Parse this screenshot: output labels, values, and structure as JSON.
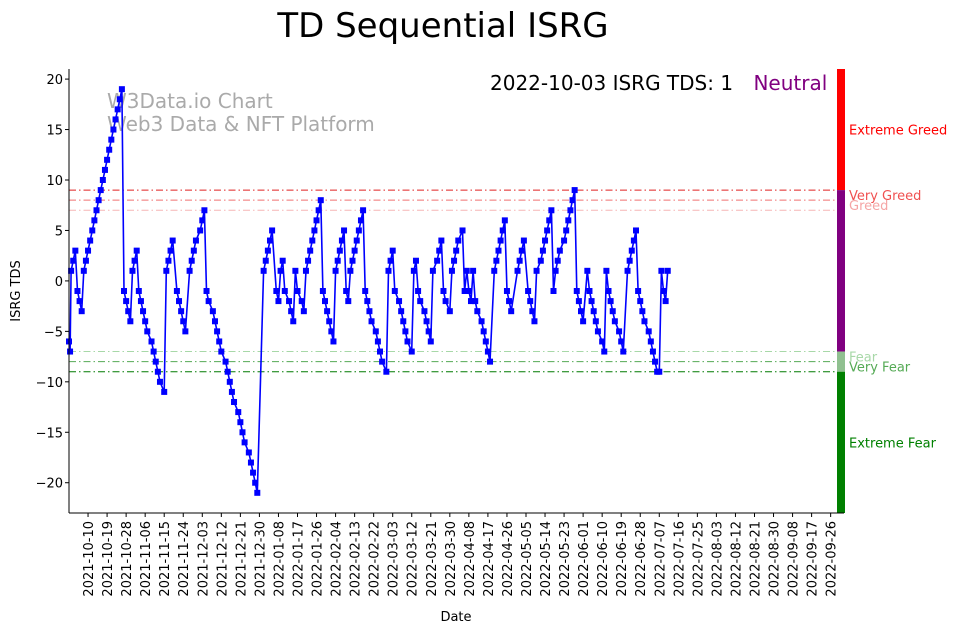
{
  "chart_data": {
    "type": "line",
    "title": "TD Sequential ISRG",
    "xlabel": "Date",
    "ylabel": "ISRG TDS",
    "ylim": [
      -23,
      21
    ],
    "yticks": [
      20,
      15,
      10,
      5,
      0,
      -5,
      -10,
      -15,
      -20
    ],
    "xlim": [
      0,
      363
    ],
    "xtick_labels": [
      "2021-10-10",
      "2021-10-19",
      "2021-10-28",
      "2021-11-06",
      "2021-11-15",
      "2021-11-24",
      "2021-12-03",
      "2021-12-12",
      "2021-12-21",
      "2021-12-30",
      "2022-01-08",
      "2022-01-17",
      "2022-01-26",
      "2022-02-04",
      "2022-02-13",
      "2022-02-22",
      "2022-03-03",
      "2022-03-12",
      "2022-03-21",
      "2022-03-30",
      "2022-04-08",
      "2022-04-17",
      "2022-04-26",
      "2022-05-05",
      "2022-05-14",
      "2022-05-23",
      "2022-06-01",
      "2022-06-10",
      "2022-06-19",
      "2022-06-28",
      "2022-07-07",
      "2022-07-16",
      "2022-07-25",
      "2022-08-03",
      "2022-08-12",
      "2022-08-21",
      "2022-08-30",
      "2022-09-08",
      "2022-09-17",
      "2022-09-26"
    ],
    "xtick_days": [
      9,
      18,
      27,
      36,
      45,
      54,
      63,
      72,
      81,
      90,
      99,
      108,
      117,
      126,
      135,
      144,
      153,
      162,
      171,
      180,
      189,
      198,
      207,
      216,
      225,
      234,
      243,
      252,
      261,
      270,
      279,
      288,
      297,
      306,
      315,
      324,
      333,
      342,
      351,
      360
    ],
    "series": [
      {
        "name": "ISRG TDS",
        "color": "#0000ff",
        "marker": "square",
        "points": [
          [
            0,
            -6
          ],
          [
            0.5,
            -7
          ],
          [
            1,
            1
          ],
          [
            2,
            2
          ],
          [
            3,
            3
          ],
          [
            4,
            -1
          ],
          [
            5,
            -2
          ],
          [
            6,
            -3
          ],
          [
            7,
            1
          ],
          [
            8,
            2
          ],
          [
            9,
            3
          ],
          [
            10,
            4
          ],
          [
            11,
            5
          ],
          [
            12,
            6
          ],
          [
            13,
            7
          ],
          [
            14,
            8
          ],
          [
            15,
            9
          ],
          [
            16,
            10
          ],
          [
            17,
            11
          ],
          [
            18,
            12
          ],
          [
            19,
            13
          ],
          [
            20,
            14
          ],
          [
            21,
            15
          ],
          [
            22,
            16
          ],
          [
            23,
            17
          ],
          [
            24,
            18
          ],
          [
            25,
            19
          ],
          [
            26,
            -1
          ],
          [
            27,
            -2
          ],
          [
            28,
            -3
          ],
          [
            29,
            -4
          ],
          [
            30,
            1
          ],
          [
            31,
            2
          ],
          [
            32,
            3
          ],
          [
            33,
            -1
          ],
          [
            34,
            -2
          ],
          [
            35,
            -3
          ],
          [
            36,
            -4
          ],
          [
            37,
            -5
          ],
          [
            39,
            -6
          ],
          [
            40,
            -7
          ],
          [
            41,
            -8
          ],
          [
            42,
            -9
          ],
          [
            43,
            -10
          ],
          [
            45,
            -11
          ],
          [
            46,
            1
          ],
          [
            47,
            2
          ],
          [
            48,
            3
          ],
          [
            49,
            4
          ],
          [
            51,
            -1
          ],
          [
            52,
            -2
          ],
          [
            53,
            -3
          ],
          [
            54,
            -4
          ],
          [
            55,
            -5
          ],
          [
            57,
            1
          ],
          [
            58,
            2
          ],
          [
            59,
            3
          ],
          [
            60,
            4
          ],
          [
            62,
            5
          ],
          [
            63,
            6
          ],
          [
            64,
            7
          ],
          [
            65,
            -1
          ],
          [
            66,
            -2
          ],
          [
            68,
            -3
          ],
          [
            69,
            -4
          ],
          [
            70,
            -5
          ],
          [
            71,
            -6
          ],
          [
            72,
            -7
          ],
          [
            74,
            -8
          ],
          [
            75,
            -9
          ],
          [
            76,
            -10
          ],
          [
            77,
            -11
          ],
          [
            78,
            -12
          ],
          [
            80,
            -13
          ],
          [
            81,
            -14
          ],
          [
            82,
            -15
          ],
          [
            83,
            -16
          ],
          [
            85,
            -17
          ],
          [
            86,
            -18
          ],
          [
            87,
            -19
          ],
          [
            88,
            -20
          ],
          [
            89,
            -21
          ],
          [
            92,
            1
          ],
          [
            93,
            2
          ],
          [
            94,
            3
          ],
          [
            95,
            4
          ],
          [
            96,
            5
          ],
          [
            98,
            -1
          ],
          [
            99,
            -2
          ],
          [
            100,
            1
          ],
          [
            101,
            2
          ],
          [
            102,
            -1
          ],
          [
            104,
            -2
          ],
          [
            105,
            -3
          ],
          [
            106,
            -4
          ],
          [
            107,
            1
          ],
          [
            108,
            -1
          ],
          [
            110,
            -2
          ],
          [
            111,
            -3
          ],
          [
            112,
            1
          ],
          [
            113,
            2
          ],
          [
            114,
            3
          ],
          [
            115,
            4
          ],
          [
            116,
            5
          ],
          [
            117,
            6
          ],
          [
            118,
            7
          ],
          [
            119,
            8
          ],
          [
            120,
            -1
          ],
          [
            121,
            -2
          ],
          [
            122,
            -3
          ],
          [
            123,
            -4
          ],
          [
            124,
            -5
          ],
          [
            125,
            -6
          ],
          [
            126,
            1
          ],
          [
            127,
            2
          ],
          [
            128,
            3
          ],
          [
            129,
            4
          ],
          [
            130,
            5
          ],
          [
            131,
            -1
          ],
          [
            132,
            -2
          ],
          [
            133,
            1
          ],
          [
            134,
            2
          ],
          [
            135,
            3
          ],
          [
            136,
            4
          ],
          [
            137,
            5
          ],
          [
            138,
            6
          ],
          [
            139,
            7
          ],
          [
            140,
            -1
          ],
          [
            141,
            -2
          ],
          [
            142,
            -3
          ],
          [
            143,
            -4
          ],
          [
            145,
            -5
          ],
          [
            146,
            -6
          ],
          [
            147,
            -7
          ],
          [
            148,
            -8
          ],
          [
            150,
            -9
          ],
          [
            151,
            1
          ],
          [
            152,
            2
          ],
          [
            153,
            3
          ],
          [
            154,
            -1
          ],
          [
            156,
            -2
          ],
          [
            157,
            -3
          ],
          [
            158,
            -4
          ],
          [
            159,
            -5
          ],
          [
            160,
            -6
          ],
          [
            162,
            -7
          ],
          [
            163,
            1
          ],
          [
            164,
            2
          ],
          [
            165,
            -1
          ],
          [
            166,
            -2
          ],
          [
            168,
            -3
          ],
          [
            169,
            -4
          ],
          [
            170,
            -5
          ],
          [
            171,
            -6
          ],
          [
            172,
            1
          ],
          [
            174,
            2
          ],
          [
            175,
            3
          ],
          [
            176,
            4
          ],
          [
            177,
            -1
          ],
          [
            178,
            -2
          ],
          [
            180,
            -3
          ],
          [
            181,
            1
          ],
          [
            182,
            2
          ],
          [
            183,
            3
          ],
          [
            184,
            4
          ],
          [
            186,
            5
          ],
          [
            187,
            -1
          ],
          [
            188,
            1
          ],
          [
            189,
            -1
          ],
          [
            190,
            -2
          ],
          [
            191,
            1
          ],
          [
            192,
            -2
          ],
          [
            193,
            -3
          ],
          [
            195,
            -4
          ],
          [
            196,
            -5
          ],
          [
            197,
            -6
          ],
          [
            198,
            -7
          ],
          [
            199,
            -8
          ],
          [
            201,
            1
          ],
          [
            202,
            2
          ],
          [
            203,
            3
          ],
          [
            204,
            4
          ],
          [
            205,
            5
          ],
          [
            206,
            6
          ],
          [
            207,
            -1
          ],
          [
            208,
            -2
          ],
          [
            209,
            -3
          ],
          [
            212,
            1
          ],
          [
            213,
            2
          ],
          [
            214,
            3
          ],
          [
            215,
            4
          ],
          [
            217,
            -1
          ],
          [
            218,
            -2
          ],
          [
            219,
            -3
          ],
          [
            220,
            -4
          ],
          [
            221,
            1
          ],
          [
            223,
            2
          ],
          [
            224,
            3
          ],
          [
            225,
            4
          ],
          [
            226,
            5
          ],
          [
            227,
            6
          ],
          [
            228,
            7
          ],
          [
            229,
            -1
          ],
          [
            230,
            1
          ],
          [
            231,
            2
          ],
          [
            232,
            3
          ],
          [
            234,
            4
          ],
          [
            235,
            5
          ],
          [
            236,
            6
          ],
          [
            237,
            7
          ],
          [
            238,
            8
          ],
          [
            239,
            9
          ],
          [
            240,
            -1
          ],
          [
            241,
            -2
          ],
          [
            242,
            -3
          ],
          [
            243,
            -4
          ],
          [
            245,
            1
          ],
          [
            246,
            -1
          ],
          [
            247,
            -2
          ],
          [
            248,
            -3
          ],
          [
            249,
            -4
          ],
          [
            250,
            -5
          ],
          [
            252,
            -6
          ],
          [
            253,
            -7
          ],
          [
            254,
            1
          ],
          [
            255,
            -1
          ],
          [
            256,
            -2
          ],
          [
            257,
            -3
          ],
          [
            258,
            -4
          ],
          [
            260,
            -5
          ],
          [
            261,
            -6
          ],
          [
            262,
            -7
          ],
          [
            264,
            1
          ],
          [
            265,
            2
          ],
          [
            266,
            3
          ],
          [
            267,
            4
          ],
          [
            268,
            5
          ],
          [
            269,
            -1
          ],
          [
            270,
            -2
          ],
          [
            271,
            -3
          ],
          [
            272,
            -4
          ],
          [
            274,
            -5
          ],
          [
            275,
            -6
          ],
          [
            276,
            -7
          ],
          [
            277,
            -8
          ],
          [
            278,
            -9
          ],
          [
            279,
            -9
          ],
          [
            280,
            1
          ],
          [
            281,
            -1
          ],
          [
            282,
            -2
          ],
          [
            283,
            1
          ]
        ]
      }
    ],
    "reference_lines": [
      {
        "name": "Very Greed",
        "y": 9,
        "color": "#e02020",
        "style": "dashdot"
      },
      {
        "name": "Greed",
        "y": 8,
        "color": "#f07070",
        "style": "dashdot"
      },
      {
        "name": "Greed",
        "y": 7,
        "color": "#f5b5b5",
        "style": "dashdot"
      },
      {
        "name": "Fear",
        "y": -7,
        "color": "#a8d8a8",
        "style": "dashdot"
      },
      {
        "name": "Very Fear",
        "y": -8,
        "color": "#55aa55",
        "style": "dashdot"
      },
      {
        "name": "Extreme Fear",
        "y": -9,
        "color": "#007a00",
        "style": "dashdot"
      }
    ],
    "zone_bar": [
      {
        "from": 9,
        "to": 21,
        "color": "#ff0000"
      },
      {
        "from": -7,
        "to": 9,
        "color": "#800080"
      },
      {
        "from": -9,
        "to": -7,
        "color": "#90c090"
      },
      {
        "from": -23,
        "to": -9,
        "color": "#008000"
      }
    ],
    "zone_labels": [
      {
        "text": "Extreme Greed",
        "y": 15,
        "color": "#ff0000"
      },
      {
        "text": "Very Greed",
        "y": 8.5,
        "color": "#f05050"
      },
      {
        "text": "Greed",
        "y": 7.5,
        "color": "#f5a5a5"
      },
      {
        "text": "Fear",
        "y": -7.5,
        "color": "#a8d8a8"
      },
      {
        "text": "Very Fear",
        "y": -8.5,
        "color": "#55aa55"
      },
      {
        "text": "Extreme Fear",
        "y": -16,
        "color": "#008000"
      }
    ],
    "annotation": {
      "text": "2022-10-03 ISRG TDS: 1",
      "status": "Neutral",
      "status_color": "#800080"
    },
    "watermark": [
      "W3Data.io Chart",
      "Web3 Data & NFT Platform"
    ]
  }
}
